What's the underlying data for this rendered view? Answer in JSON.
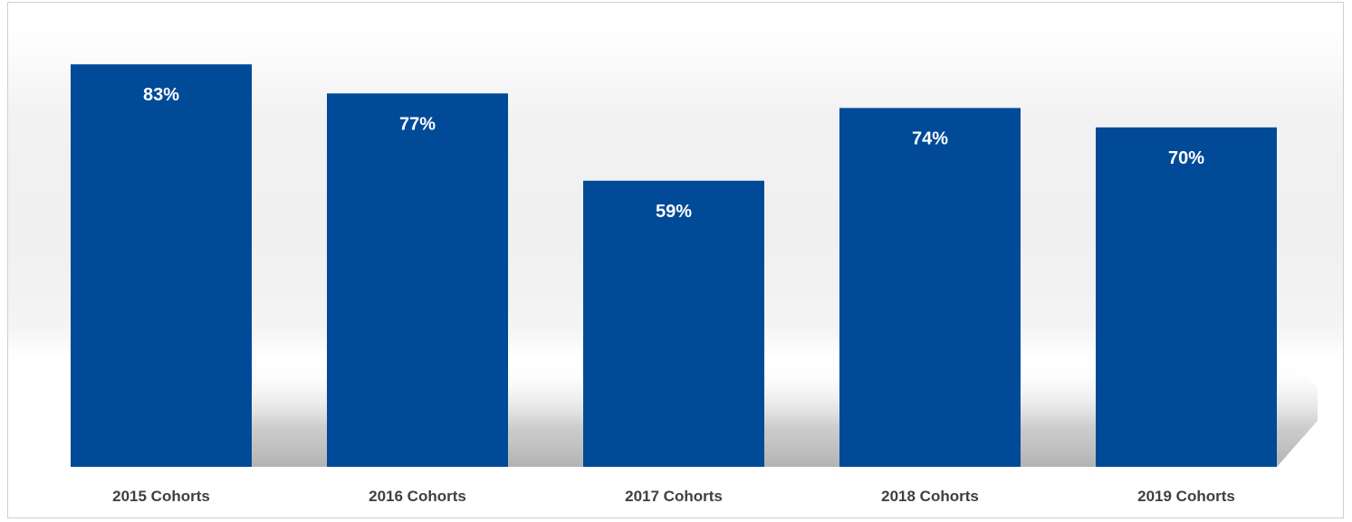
{
  "chart_data": {
    "type": "bar",
    "categories": [
      "2015 Cohorts",
      "2016 Cohorts",
      "2017 Cohorts",
      "2018 Cohorts",
      "2019 Cohorts"
    ],
    "values": [
      83,
      77,
      59,
      74,
      70
    ],
    "value_labels": [
      "83%",
      "77%",
      "59%",
      "74%",
      "70%"
    ],
    "title": "",
    "xlabel": "",
    "ylabel": "",
    "ylim": [
      0,
      100
    ],
    "grid": false,
    "legend": "none",
    "bar_color": "#004A98",
    "label_color": "#ffffff",
    "category_label_color": "#404040"
  }
}
